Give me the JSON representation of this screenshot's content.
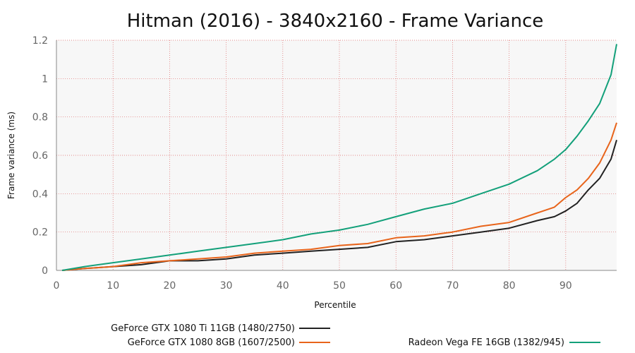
{
  "chart_data": {
    "type": "line",
    "title": "Hitman (2016) - 3840x2160 - Frame Variance",
    "xlabel": "Percentile",
    "ylabel": "Frame variance (ms)",
    "xlim": [
      0,
      99
    ],
    "ylim": [
      0,
      1.2
    ],
    "xticks": [
      0,
      10,
      20,
      30,
      40,
      50,
      60,
      70,
      80,
      90
    ],
    "yticks": [
      0,
      0.2,
      0.4,
      0.6,
      0.8,
      1,
      1.2
    ],
    "xtick_labels": [
      "0",
      "10",
      "20",
      "30",
      "40",
      "50",
      "60",
      "70",
      "80",
      "90"
    ],
    "ytick_labels": [
      "0",
      "0.2",
      "0.4",
      "0.6",
      "0.8",
      "1",
      "1.2"
    ],
    "grid": true,
    "legend_position": "bottom",
    "x": [
      1,
      5,
      10,
      15,
      20,
      25,
      30,
      35,
      40,
      45,
      50,
      55,
      60,
      65,
      70,
      75,
      80,
      85,
      88,
      90,
      92,
      94,
      96,
      98,
      99
    ],
    "series": [
      {
        "name": "GeForce GTX 1080 Ti 11GB (1480/2750)",
        "color": "#222222",
        "values": [
          0.0,
          0.01,
          0.02,
          0.03,
          0.05,
          0.05,
          0.06,
          0.08,
          0.09,
          0.1,
          0.11,
          0.12,
          0.15,
          0.16,
          0.18,
          0.2,
          0.22,
          0.26,
          0.28,
          0.31,
          0.35,
          0.42,
          0.48,
          0.58,
          0.68
        ]
      },
      {
        "name": "GeForce GTX 1080 8GB (1607/2500)",
        "color": "#e8641b",
        "values": [
          0.0,
          0.01,
          0.02,
          0.04,
          0.05,
          0.06,
          0.07,
          0.09,
          0.1,
          0.11,
          0.13,
          0.14,
          0.17,
          0.18,
          0.2,
          0.23,
          0.25,
          0.3,
          0.33,
          0.38,
          0.42,
          0.48,
          0.56,
          0.68,
          0.77
        ]
      },
      {
        "name": "Radeon Vega FE 16GB (1382/945)",
        "color": "#13a07a",
        "values": [
          0.0,
          0.02,
          0.04,
          0.06,
          0.08,
          0.1,
          0.12,
          0.14,
          0.16,
          0.19,
          0.21,
          0.24,
          0.28,
          0.32,
          0.35,
          0.4,
          0.45,
          0.52,
          0.58,
          0.63,
          0.7,
          0.78,
          0.87,
          1.02,
          1.18
        ]
      }
    ]
  }
}
